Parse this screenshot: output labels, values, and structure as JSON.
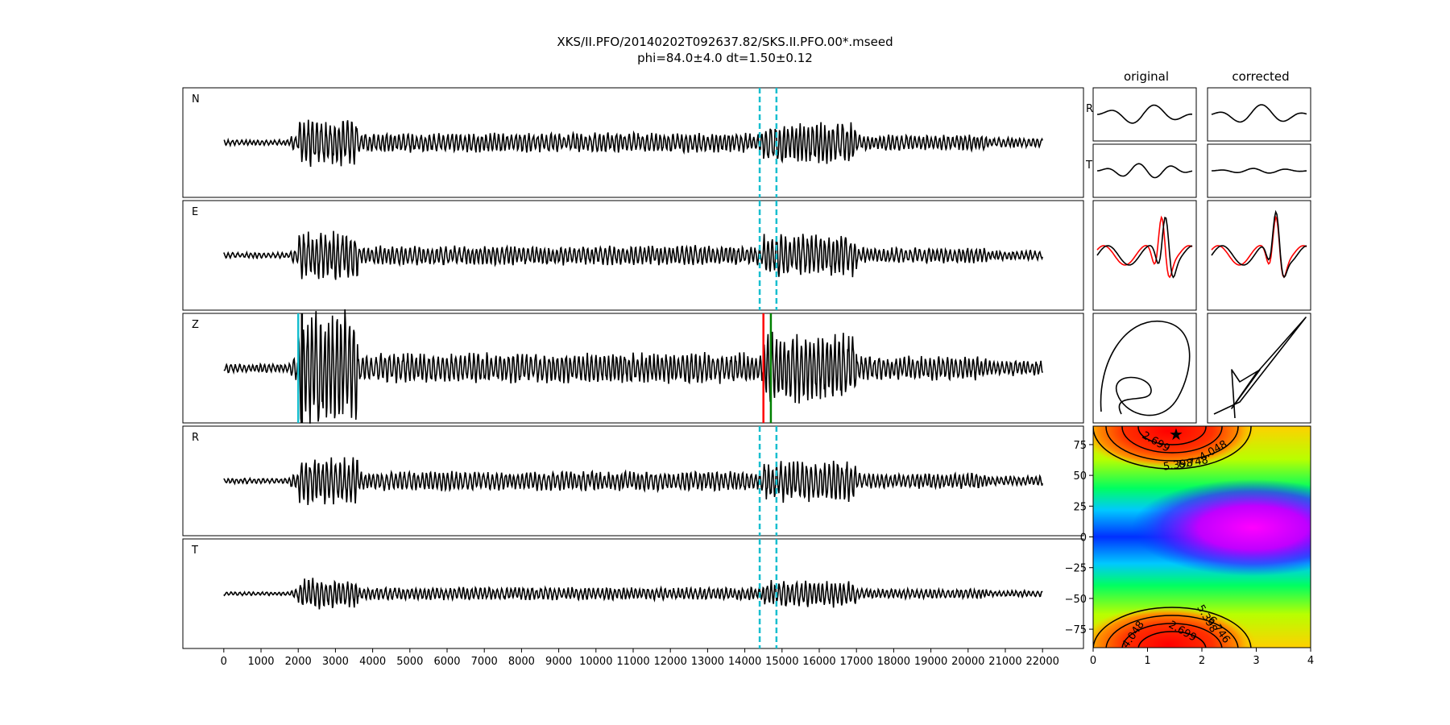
{
  "title_line1": "XKS/II.PFO/20140202T092637.82/SKS.II.PFO.00*.mseed",
  "title_line2": "phi=84.0±4.0 dt=1.50±0.12",
  "chart_data": [
    {
      "type": "line",
      "description_source": "seismic traces",
      "traces": [
        {
          "name": "N"
        },
        {
          "name": "E"
        },
        {
          "name": "Z"
        },
        {
          "name": "R"
        },
        {
          "name": "T"
        }
      ],
      "x_ticks": [
        0,
        1000,
        2000,
        3000,
        4000,
        5000,
        6000,
        7000,
        8000,
        9000,
        10000,
        11000,
        12000,
        13000,
        14000,
        15000,
        16000,
        17000,
        18000,
        19000,
        20000,
        21000,
        22000
      ],
      "xlim": [
        -1100,
        23100
      ],
      "window_markers": {
        "start": 14400,
        "end": 14850,
        "color": "#17becf",
        "panels": [
          "N",
          "E",
          "R",
          "T"
        ]
      },
      "z_markers": [
        {
          "x": 2000,
          "color": "#17becf"
        },
        {
          "x": 2100,
          "color": "#000000"
        },
        {
          "x": 14500,
          "color": "#ff0000"
        },
        {
          "x": 14700,
          "color": "#008000"
        }
      ]
    },
    {
      "type": "line",
      "column_titles": {
        "original": "original",
        "corrected": "corrected"
      },
      "row_labels": [
        "R",
        "T"
      ],
      "series_colors": [
        "#000000",
        "#ff0000"
      ]
    },
    {
      "type": "heatmap",
      "x_ticks": [
        0,
        1,
        2,
        3,
        4
      ],
      "y_ticks": [
        75,
        50,
        25,
        0,
        -25,
        -50,
        -75
      ],
      "xlim": [
        0,
        4
      ],
      "ylim": [
        -90,
        90
      ],
      "best": {
        "dt": 1.5,
        "phi": 84.0
      },
      "contour_labels": [
        "2.699",
        "4.048",
        "5.398",
        "6.748",
        "2.699",
        "4.048",
        "5.398",
        "6.746"
      ]
    }
  ]
}
